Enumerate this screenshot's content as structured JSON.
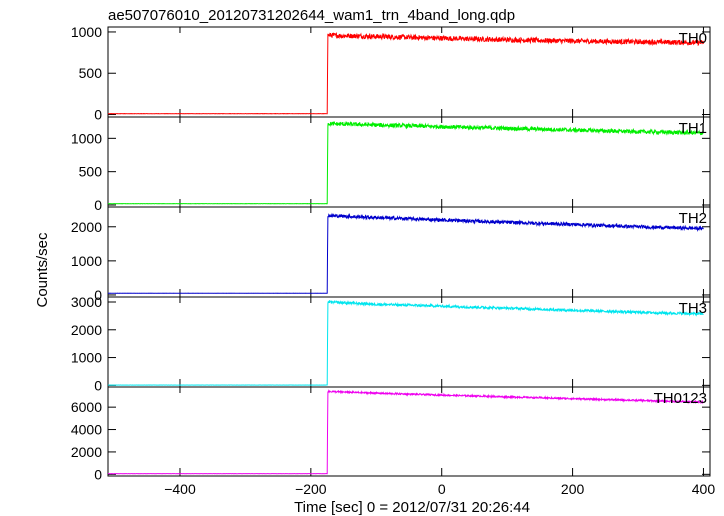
{
  "chart_data": {
    "type": "line",
    "title": "ae507076010_20120731202644_wam1_trn_4band_long.qdp",
    "xlabel": "Time [sec] 0 = 2012/07/31 20:26:44",
    "ylabel": "Counts/sec",
    "xlim": [
      -510,
      410
    ],
    "xticks": [
      -400,
      -200,
      0,
      200,
      400
    ],
    "grid": false,
    "panels": [
      {
        "name": "TH0",
        "color": "#ff0000",
        "ylim": [
          -30,
          1060
        ],
        "yticks": [
          0,
          500,
          1000
        ],
        "pre_level": 10,
        "x": [
          -510,
          -175,
          -174,
          -100,
          0,
          100,
          200,
          300,
          400
        ],
        "y": [
          10,
          10,
          960,
          945,
          925,
          905,
          890,
          880,
          870
        ],
        "noise": 30
      },
      {
        "name": "TH1",
        "color": "#00ee00",
        "ylim": [
          -30,
          1320
        ],
        "yticks": [
          0,
          500,
          1000
        ],
        "pre_level": 20,
        "x": [
          -510,
          -175,
          -174,
          -100,
          0,
          100,
          200,
          300,
          400
        ],
        "y": [
          20,
          20,
          1220,
          1200,
          1175,
          1150,
          1125,
          1100,
          1080
        ],
        "noise": 30
      },
      {
        "name": "TH2",
        "color": "#0000cc",
        "ylim": [
          -60,
          2580
        ],
        "yticks": [
          0,
          1000,
          2000
        ],
        "pre_level": 50,
        "x": [
          -510,
          -175,
          -174,
          -100,
          0,
          100,
          200,
          300,
          400
        ],
        "y": [
          50,
          50,
          2330,
          2270,
          2200,
          2130,
          2070,
          2000,
          1950
        ],
        "noise": 50
      },
      {
        "name": "TH3",
        "color": "#00e5ee",
        "ylim": [
          -60,
          3180
        ],
        "yticks": [
          0,
          1000,
          2000,
          3000
        ],
        "pre_level": 10,
        "x": [
          -510,
          -175,
          -174,
          -100,
          0,
          100,
          200,
          300,
          400
        ],
        "y": [
          10,
          10,
          3000,
          2920,
          2850,
          2780,
          2700,
          2630,
          2570
        ],
        "noise": 45
      },
      {
        "name": "TH0123",
        "color": "#ee00ee",
        "ylim": [
          -150,
          7800
        ],
        "yticks": [
          0,
          2000,
          4000,
          6000
        ],
        "pre_level": 60,
        "x": [
          -510,
          -175,
          -174,
          -100,
          0,
          100,
          200,
          300,
          400
        ],
        "y": [
          60,
          60,
          7400,
          7250,
          7080,
          6920,
          6760,
          6600,
          6450
        ],
        "noise": 70
      }
    ]
  }
}
